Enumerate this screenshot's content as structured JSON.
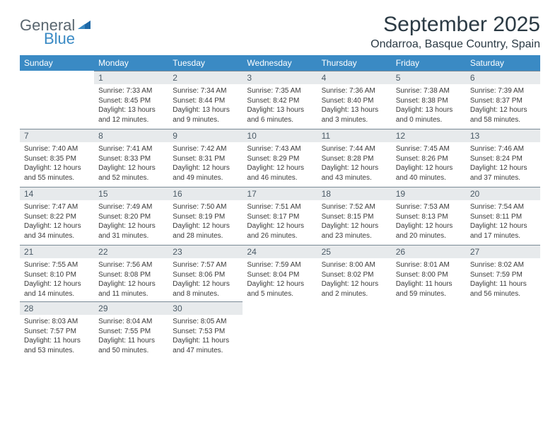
{
  "brand": {
    "general": "General",
    "blue": "Blue"
  },
  "header": {
    "title": "September 2025",
    "location": "Ondarroa, Basque Country, Spain"
  },
  "colors": {
    "header_bg": "#3a8ac4",
    "daynum_bg": "#e7eaec",
    "rule": "#7a8a96",
    "text": "#333333",
    "logo_gray": "#5a6770",
    "logo_blue": "#3a8ac4"
  },
  "weekdays": [
    "Sunday",
    "Monday",
    "Tuesday",
    "Wednesday",
    "Thursday",
    "Friday",
    "Saturday"
  ],
  "start_offset": 1,
  "days": [
    {
      "n": 1,
      "sr": "7:33 AM",
      "ss": "8:45 PM",
      "dl": "13 hours and 12 minutes."
    },
    {
      "n": 2,
      "sr": "7:34 AM",
      "ss": "8:44 PM",
      "dl": "13 hours and 9 minutes."
    },
    {
      "n": 3,
      "sr": "7:35 AM",
      "ss": "8:42 PM",
      "dl": "13 hours and 6 minutes."
    },
    {
      "n": 4,
      "sr": "7:36 AM",
      "ss": "8:40 PM",
      "dl": "13 hours and 3 minutes."
    },
    {
      "n": 5,
      "sr": "7:38 AM",
      "ss": "8:38 PM",
      "dl": "13 hours and 0 minutes."
    },
    {
      "n": 6,
      "sr": "7:39 AM",
      "ss": "8:37 PM",
      "dl": "12 hours and 58 minutes."
    },
    {
      "n": 7,
      "sr": "7:40 AM",
      "ss": "8:35 PM",
      "dl": "12 hours and 55 minutes."
    },
    {
      "n": 8,
      "sr": "7:41 AM",
      "ss": "8:33 PM",
      "dl": "12 hours and 52 minutes."
    },
    {
      "n": 9,
      "sr": "7:42 AM",
      "ss": "8:31 PM",
      "dl": "12 hours and 49 minutes."
    },
    {
      "n": 10,
      "sr": "7:43 AM",
      "ss": "8:29 PM",
      "dl": "12 hours and 46 minutes."
    },
    {
      "n": 11,
      "sr": "7:44 AM",
      "ss": "8:28 PM",
      "dl": "12 hours and 43 minutes."
    },
    {
      "n": 12,
      "sr": "7:45 AM",
      "ss": "8:26 PM",
      "dl": "12 hours and 40 minutes."
    },
    {
      "n": 13,
      "sr": "7:46 AM",
      "ss": "8:24 PM",
      "dl": "12 hours and 37 minutes."
    },
    {
      "n": 14,
      "sr": "7:47 AM",
      "ss": "8:22 PM",
      "dl": "12 hours and 34 minutes."
    },
    {
      "n": 15,
      "sr": "7:49 AM",
      "ss": "8:20 PM",
      "dl": "12 hours and 31 minutes."
    },
    {
      "n": 16,
      "sr": "7:50 AM",
      "ss": "8:19 PM",
      "dl": "12 hours and 28 minutes."
    },
    {
      "n": 17,
      "sr": "7:51 AM",
      "ss": "8:17 PM",
      "dl": "12 hours and 26 minutes."
    },
    {
      "n": 18,
      "sr": "7:52 AM",
      "ss": "8:15 PM",
      "dl": "12 hours and 23 minutes."
    },
    {
      "n": 19,
      "sr": "7:53 AM",
      "ss": "8:13 PM",
      "dl": "12 hours and 20 minutes."
    },
    {
      "n": 20,
      "sr": "7:54 AM",
      "ss": "8:11 PM",
      "dl": "12 hours and 17 minutes."
    },
    {
      "n": 21,
      "sr": "7:55 AM",
      "ss": "8:10 PM",
      "dl": "12 hours and 14 minutes."
    },
    {
      "n": 22,
      "sr": "7:56 AM",
      "ss": "8:08 PM",
      "dl": "12 hours and 11 minutes."
    },
    {
      "n": 23,
      "sr": "7:57 AM",
      "ss": "8:06 PM",
      "dl": "12 hours and 8 minutes."
    },
    {
      "n": 24,
      "sr": "7:59 AM",
      "ss": "8:04 PM",
      "dl": "12 hours and 5 minutes."
    },
    {
      "n": 25,
      "sr": "8:00 AM",
      "ss": "8:02 PM",
      "dl": "12 hours and 2 minutes."
    },
    {
      "n": 26,
      "sr": "8:01 AM",
      "ss": "8:00 PM",
      "dl": "11 hours and 59 minutes."
    },
    {
      "n": 27,
      "sr": "8:02 AM",
      "ss": "7:59 PM",
      "dl": "11 hours and 56 minutes."
    },
    {
      "n": 28,
      "sr": "8:03 AM",
      "ss": "7:57 PM",
      "dl": "11 hours and 53 minutes."
    },
    {
      "n": 29,
      "sr": "8:04 AM",
      "ss": "7:55 PM",
      "dl": "11 hours and 50 minutes."
    },
    {
      "n": 30,
      "sr": "8:05 AM",
      "ss": "7:53 PM",
      "dl": "11 hours and 47 minutes."
    }
  ],
  "labels": {
    "sunrise": "Sunrise:",
    "sunset": "Sunset:",
    "daylight": "Daylight:"
  }
}
